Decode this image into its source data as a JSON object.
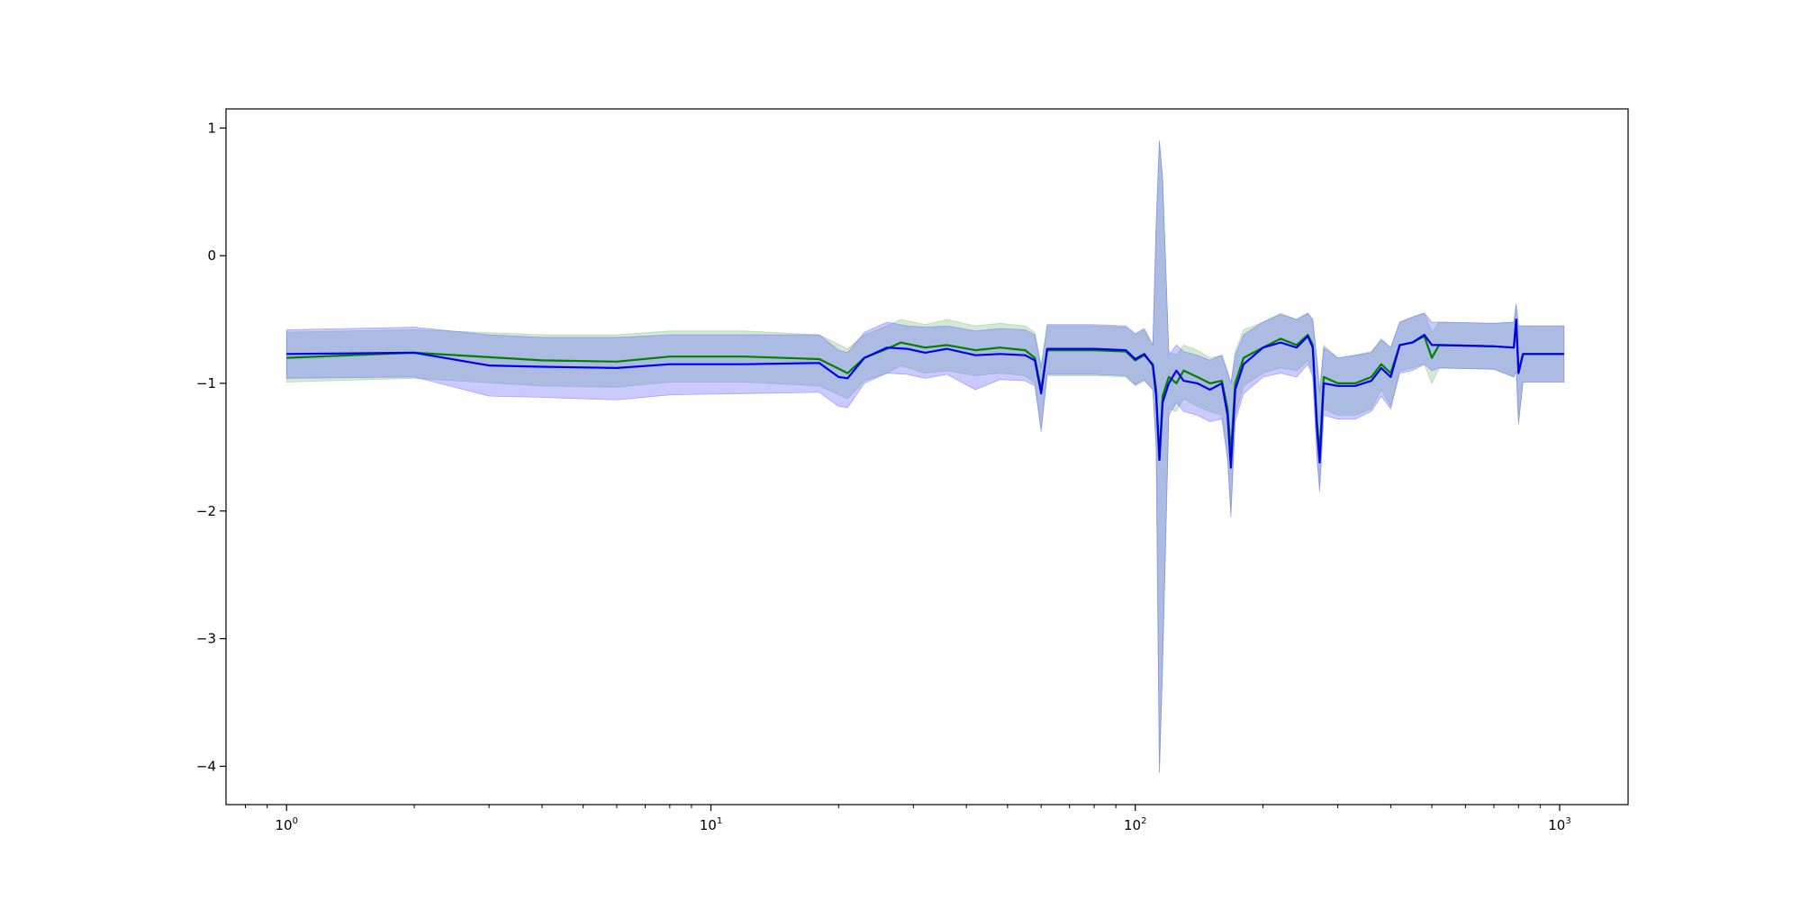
{
  "chart_data": {
    "type": "line",
    "title": "",
    "xlabel": "",
    "ylabel": "",
    "x_scale": "log",
    "xlim": [
      0.72,
      1450
    ],
    "ylim": [
      -4.3,
      1.15
    ],
    "x_ticks": [
      {
        "value": 1,
        "base": "10",
        "exp": "0"
      },
      {
        "value": 10,
        "base": "10",
        "exp": "1"
      },
      {
        "value": 100,
        "base": "10",
        "exp": "2"
      },
      {
        "value": 1000,
        "base": "10",
        "exp": "3"
      }
    ],
    "y_ticks": [
      {
        "value": 1,
        "label": "1"
      },
      {
        "value": 0,
        "label": "0"
      },
      {
        "value": -1,
        "label": "−1"
      },
      {
        "value": -2,
        "label": "−2"
      },
      {
        "value": -3,
        "label": "−3"
      },
      {
        "value": -4,
        "label": "−4"
      }
    ],
    "grid": false,
    "legend": "none",
    "series": [
      {
        "color": "#008000",
        "band_color": "#7fbf7f",
        "points": [
          [
            1,
            -0.8,
            -0.6,
            -0.99
          ],
          [
            2,
            -0.76,
            -0.58,
            -0.96
          ],
          [
            4,
            -0.82,
            -0.62,
            -1.02
          ],
          [
            6,
            -0.83,
            -0.62,
            -1.03
          ],
          [
            8,
            -0.79,
            -0.59,
            -0.99
          ],
          [
            12,
            -0.79,
            -0.59,
            -0.99
          ],
          [
            18,
            -0.81,
            -0.62,
            -1.02
          ],
          [
            21,
            -0.92,
            -0.73,
            -1.12
          ],
          [
            23,
            -0.8,
            -0.62,
            -0.98
          ],
          [
            26,
            -0.73,
            -0.55,
            -0.92
          ],
          [
            28,
            -0.68,
            -0.5,
            -0.86
          ],
          [
            32,
            -0.72,
            -0.54,
            -0.92
          ],
          [
            36,
            -0.7,
            -0.5,
            -0.9
          ],
          [
            42,
            -0.74,
            -0.55,
            -0.94
          ],
          [
            48,
            -0.72,
            -0.53,
            -0.92
          ],
          [
            55,
            -0.74,
            -0.55,
            -0.94
          ],
          [
            58,
            -0.8,
            -0.6,
            -1.0
          ],
          [
            60,
            -1.05,
            -0.85,
            -1.35
          ],
          [
            62,
            -0.74,
            -0.55,
            -0.94
          ],
          [
            80,
            -0.74,
            -0.55,
            -0.94
          ],
          [
            95,
            -0.75,
            -0.56,
            -0.95
          ],
          [
            100,
            -0.82,
            -0.62,
            -1.02
          ],
          [
            105,
            -0.78,
            -0.58,
            -0.98
          ],
          [
            110,
            -0.85,
            -0.7,
            -1.05
          ],
          [
            112,
            -1.05,
            0.25,
            -1.5
          ],
          [
            114,
            -1.6,
            0.9,
            -4.05
          ],
          [
            116,
            -1.1,
            0.6,
            -3.2
          ],
          [
            120,
            -0.95,
            -0.75,
            -1.2
          ],
          [
            125,
            -1.0,
            -0.78,
            -1.22
          ],
          [
            130,
            -0.9,
            -0.7,
            -1.12
          ],
          [
            140,
            -0.95,
            -0.74,
            -1.18
          ],
          [
            150,
            -1.0,
            -0.8,
            -1.22
          ],
          [
            160,
            -0.98,
            -0.78,
            -1.25
          ],
          [
            165,
            -1.2,
            -0.9,
            -1.55
          ],
          [
            168,
            -1.55,
            -1.0,
            -2.0
          ],
          [
            172,
            -1.0,
            -0.75,
            -1.25
          ],
          [
            180,
            -0.8,
            -0.58,
            -1.02
          ],
          [
            200,
            -0.72,
            -0.52,
            -0.92
          ],
          [
            220,
            -0.65,
            -0.45,
            -0.88
          ],
          [
            240,
            -0.7,
            -0.5,
            -0.9
          ],
          [
            255,
            -0.62,
            -0.45,
            -0.82
          ],
          [
            262,
            -0.7,
            -0.5,
            -0.92
          ],
          [
            268,
            -1.3,
            -0.8,
            -1.55
          ],
          [
            272,
            -1.55,
            -1.05,
            -1.8
          ],
          [
            278,
            -0.95,
            -0.7,
            -1.2
          ],
          [
            300,
            -1.0,
            -0.8,
            -1.25
          ],
          [
            330,
            -1.0,
            -0.78,
            -1.25
          ],
          [
            360,
            -0.95,
            -0.75,
            -1.2
          ],
          [
            380,
            -0.85,
            -0.65,
            -1.05
          ],
          [
            400,
            -0.92,
            -0.72,
            -1.18
          ],
          [
            420,
            -0.7,
            -0.52,
            -0.9
          ],
          [
            450,
            -0.68,
            -0.48,
            -0.88
          ],
          [
            480,
            -0.63,
            -0.45,
            -0.85
          ],
          [
            500,
            -0.8,
            -0.6,
            -1.0
          ],
          [
            520,
            -0.7,
            -0.52,
            -0.88
          ],
          [
            700,
            -0.71,
            -0.53,
            -0.89
          ],
          [
            780,
            -0.72,
            -0.52,
            -0.95
          ],
          [
            790,
            -0.5,
            -0.38,
            -0.9
          ],
          [
            800,
            -0.9,
            -0.55,
            -1.3
          ],
          [
            820,
            -0.77,
            -0.55,
            -0.99
          ],
          [
            1024,
            -0.77,
            -0.55,
            -0.99
          ]
        ]
      },
      {
        "color": "#0000ee",
        "band_color": "#6666ff",
        "points": [
          [
            1,
            -0.77,
            -0.58,
            -0.96
          ],
          [
            2,
            -0.76,
            -0.56,
            -0.95
          ],
          [
            3,
            -0.86,
            -0.62,
            -1.1
          ],
          [
            4,
            -0.87,
            -0.64,
            -1.11
          ],
          [
            6,
            -0.88,
            -0.64,
            -1.13
          ],
          [
            8,
            -0.85,
            -0.62,
            -1.09
          ],
          [
            12,
            -0.85,
            -0.62,
            -1.08
          ],
          [
            18,
            -0.84,
            -0.62,
            -1.07
          ],
          [
            20,
            -0.95,
            -0.74,
            -1.18
          ],
          [
            21,
            -0.96,
            -0.76,
            -1.19
          ],
          [
            23,
            -0.8,
            -0.6,
            -1.0
          ],
          [
            26,
            -0.72,
            -0.52,
            -0.92
          ],
          [
            29,
            -0.73,
            -0.55,
            -0.93
          ],
          [
            32,
            -0.76,
            -0.56,
            -0.96
          ],
          [
            36,
            -0.73,
            -0.55,
            -0.93
          ],
          [
            42,
            -0.78,
            -0.59,
            -1.05
          ],
          [
            48,
            -0.77,
            -0.57,
            -0.97
          ],
          [
            55,
            -0.78,
            -0.58,
            -0.98
          ],
          [
            58,
            -0.82,
            -0.62,
            -1.02
          ],
          [
            60,
            -1.08,
            -0.88,
            -1.38
          ],
          [
            62,
            -0.73,
            -0.54,
            -0.93
          ],
          [
            80,
            -0.73,
            -0.54,
            -0.93
          ],
          [
            95,
            -0.74,
            -0.55,
            -0.94
          ],
          [
            100,
            -0.81,
            -0.61,
            -1.01
          ],
          [
            105,
            -0.77,
            -0.57,
            -0.97
          ],
          [
            110,
            -0.86,
            -0.7,
            -1.05
          ],
          [
            112,
            -1.1,
            0.25,
            -1.5
          ],
          [
            114,
            -1.6,
            0.9,
            -4.05
          ],
          [
            116,
            -1.15,
            0.6,
            -3.2
          ],
          [
            120,
            -1.0,
            -0.78,
            -1.25
          ],
          [
            125,
            -0.9,
            -0.7,
            -1.15
          ],
          [
            130,
            -0.98,
            -0.75,
            -1.22
          ],
          [
            140,
            -1.0,
            -0.78,
            -1.25
          ],
          [
            150,
            -1.05,
            -0.82,
            -1.3
          ],
          [
            160,
            -1.0,
            -0.78,
            -1.28
          ],
          [
            165,
            -1.25,
            -0.92,
            -1.6
          ],
          [
            168,
            -1.66,
            -1.0,
            -2.05
          ],
          [
            172,
            -1.05,
            -0.78,
            -1.3
          ],
          [
            180,
            -0.85,
            -0.62,
            -1.08
          ],
          [
            200,
            -0.72,
            -0.52,
            -0.95
          ],
          [
            220,
            -0.68,
            -0.46,
            -0.92
          ],
          [
            240,
            -0.72,
            -0.5,
            -0.95
          ],
          [
            255,
            -0.63,
            -0.45,
            -0.85
          ],
          [
            262,
            -0.72,
            -0.5,
            -0.95
          ],
          [
            268,
            -1.35,
            -0.82,
            -1.6
          ],
          [
            272,
            -1.62,
            -1.08,
            -1.85
          ],
          [
            278,
            -1.0,
            -0.72,
            -1.25
          ],
          [
            300,
            -1.02,
            -0.8,
            -1.28
          ],
          [
            330,
            -1.02,
            -0.78,
            -1.28
          ],
          [
            360,
            -0.98,
            -0.76,
            -1.22
          ],
          [
            380,
            -0.88,
            -0.66,
            -1.1
          ],
          [
            400,
            -0.95,
            -0.72,
            -1.2
          ],
          [
            420,
            -0.7,
            -0.52,
            -0.92
          ],
          [
            450,
            -0.68,
            -0.48,
            -0.9
          ],
          [
            480,
            -0.62,
            -0.45,
            -0.85
          ],
          [
            500,
            -0.7,
            -0.52,
            -0.9
          ],
          [
            520,
            -0.7,
            -0.52,
            -0.88
          ],
          [
            700,
            -0.71,
            -0.53,
            -0.89
          ],
          [
            780,
            -0.72,
            -0.52,
            -0.95
          ],
          [
            790,
            -0.5,
            -0.38,
            -0.9
          ],
          [
            800,
            -0.92,
            -0.55,
            -1.32
          ],
          [
            820,
            -0.77,
            -0.55,
            -0.99
          ],
          [
            1024,
            -0.77,
            -0.55,
            -0.99
          ]
        ]
      }
    ]
  }
}
